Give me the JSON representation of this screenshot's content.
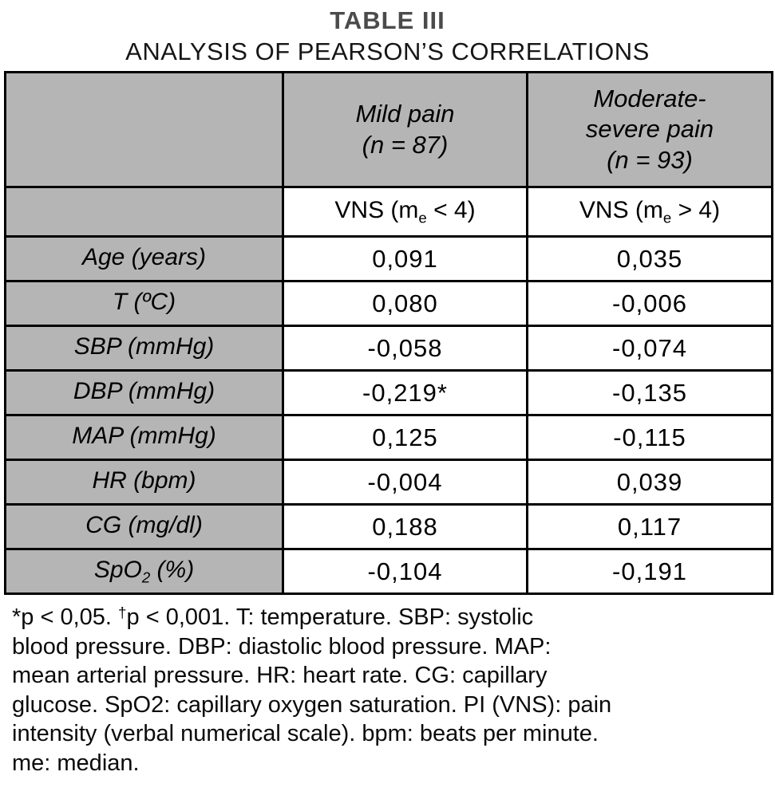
{
  "title": "TABLE III",
  "subtitle": "ANALYSIS OF PEARSON’S CORRELATIONS",
  "colors": {
    "header_bg": "#b5b5b5",
    "border": "#000000",
    "title_text": "#4b4b4b"
  },
  "table": {
    "group_headers": {
      "mild": "Mild pain\n(n = 87)",
      "moderate_severe": "Moderate-\nsevere pain\n(n = 93)"
    },
    "subheaders": {
      "mild": {
        "pre": "VNS (m",
        "sub": "e",
        "post": " < 4)"
      },
      "moderate_severe": {
        "pre": "VNS (m",
        "sub": "e",
        "post": " > 4)"
      }
    },
    "rows": [
      {
        "label_pre": "Age (years)",
        "label_sub": "",
        "label_post": "",
        "mild": "0,091",
        "modsev": "0,035"
      },
      {
        "label_pre": "T (ºC)",
        "label_sub": "",
        "label_post": "",
        "mild": "0,080",
        "modsev": "-0,006"
      },
      {
        "label_pre": "SBP (mmHg)",
        "label_sub": "",
        "label_post": "",
        "mild": "-0,058",
        "modsev": "-0,074"
      },
      {
        "label_pre": "DBP (mmHg)",
        "label_sub": "",
        "label_post": "",
        "mild": "-0,219*",
        "modsev": "-0,135"
      },
      {
        "label_pre": "MAP (mmHg)",
        "label_sub": "",
        "label_post": "",
        "mild": "0,125",
        "modsev": "-0,115"
      },
      {
        "label_pre": "HR (bpm)",
        "label_sub": "",
        "label_post": "",
        "mild": "-0,004",
        "modsev": "0,039"
      },
      {
        "label_pre": "CG (mg/dl)",
        "label_sub": "",
        "label_post": "",
        "mild": "0,188",
        "modsev": "0,117"
      },
      {
        "label_pre": "SpO",
        "label_sub": "2",
        "label_post": " (%)",
        "mild": "-0,104",
        "modsev": "-0,191"
      }
    ]
  },
  "footnote": {
    "star_part": "*p < 0,05. ",
    "dagger": "†",
    "rest": "p < 0,001. T: temperature. SBP: systolic\nblood pressure. DBP: diastolic blood pressure. MAP:\nmean arterial pressure. HR: heart rate. CG: capillary\nglucose. SpO2: capillary oxygen saturation. PI (VNS): pain\nintensity (verbal numerical scale). bpm: beats per minute.\nme: median."
  }
}
